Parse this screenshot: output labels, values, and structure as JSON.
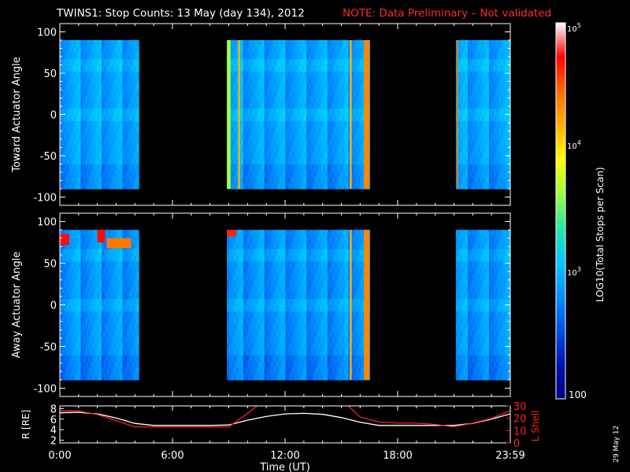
{
  "header": {
    "title": "TWINS1: Stop Counts: 13 May (day 134), 2012",
    "note": "NOTE: Data Preliminary – Not validated",
    "note_color": "#ff2a2a"
  },
  "side_date": "29 May 12",
  "colorbar": {
    "label": "LOG10(Total Stops per Scan)",
    "tick_top": "10",
    "tick_top_exp": "5",
    "tick_mid": "10",
    "tick_mid_exp": "4",
    "tick_low": "10",
    "tick_low_exp": "3",
    "tick_bottom": "100",
    "colors": [
      "#ffffff",
      "#ff0000",
      "#ff6a00",
      "#ffb000",
      "#ffff00",
      "#9cff3a",
      "#25e8a8",
      "#00c8ff",
      "#0090ff",
      "#0050e8",
      "#0012b0",
      "#000080"
    ]
  },
  "chart_data": [
    {
      "type": "heatmap",
      "panel": "top",
      "ylabel": "Toward Actuator Angle",
      "ylim": [
        -110,
        110
      ],
      "yticks": [
        "100",
        "50",
        "0",
        "-50",
        "-100"
      ],
      "ytick_values": [
        100,
        50,
        0,
        -50,
        -100
      ],
      "data_y_range": [
        -90,
        90
      ],
      "xlim_hours": [
        0,
        24
      ],
      "coverage_hours": [
        [
          0.0,
          4.2
        ],
        [
          8.9,
          16.5
        ],
        [
          21.1,
          24.0
        ]
      ],
      "baseline_level": 0.3,
      "bands": [
        {
          "t0": 8.9,
          "t1": 9.1,
          "level": 0.55
        },
        {
          "t0": 9.5,
          "t1": 9.6,
          "level": 0.72
        },
        {
          "t0": 15.45,
          "t1": 15.55,
          "level": 0.72
        },
        {
          "t0": 16.2,
          "t1": 16.5,
          "level": 0.78
        },
        {
          "t0": 21.15,
          "t1": 21.22,
          "level": 0.8
        }
      ]
    },
    {
      "type": "heatmap",
      "panel": "bottom",
      "ylabel": "Away Actuator Angle",
      "ylim": [
        -110,
        110
      ],
      "yticks": [
        "100",
        "50",
        "0",
        "-50",
        "-100"
      ],
      "ytick_values": [
        100,
        50,
        0,
        -50,
        -100
      ],
      "data_y_range": [
        -90,
        90
      ],
      "xlim_hours": [
        0,
        24
      ],
      "coverage_hours": [
        [
          0.0,
          4.2
        ],
        [
          8.9,
          16.5
        ],
        [
          21.1,
          24.0
        ]
      ],
      "baseline_level": 0.28,
      "bands": [
        {
          "t0": 8.9,
          "t1": 9.4,
          "level": 0.88,
          "y0": 82,
          "y1": 90
        },
        {
          "t0": 0.0,
          "t1": 0.5,
          "level": 0.9,
          "y0": 72,
          "y1": 85
        },
        {
          "t0": 2.0,
          "t1": 2.4,
          "level": 0.9,
          "y0": 75,
          "y1": 90
        },
        {
          "t0": 2.5,
          "t1": 3.8,
          "level": 0.8,
          "y0": 68,
          "y1": 80
        },
        {
          "t0": 15.45,
          "t1": 15.55,
          "level": 0.72
        },
        {
          "t0": 16.2,
          "t1": 16.5,
          "level": 0.78
        }
      ]
    },
    {
      "type": "line",
      "panel": "orbit",
      "ylabel_left": "R [RE]",
      "ylabel_right": "L Shell",
      "xlabel": "Time (UT)",
      "x_ticks": [
        "0:00",
        "6:00",
        "12:00",
        "18:00",
        "23:59"
      ],
      "x_tick_hours": [
        0,
        6,
        12,
        18,
        24
      ],
      "left_yticks": [
        "8",
        "6",
        "4",
        "2"
      ],
      "left_ytick_values": [
        8,
        6,
        4,
        2
      ],
      "left_ylim": [
        1.5,
        8.5
      ],
      "right_yticks": [
        "30",
        "20",
        "10",
        "0"
      ],
      "right_ytick_values": [
        30,
        20,
        10,
        0
      ],
      "right_ylim": [
        0,
        30
      ],
      "series": [
        {
          "axis": "left",
          "color": "#ffffff",
          "x": [
            0,
            1,
            2,
            3,
            4,
            5,
            6,
            7,
            8,
            9,
            10,
            11,
            12,
            13,
            14,
            15,
            16,
            17,
            18,
            19,
            20,
            21,
            22,
            23,
            24
          ],
          "y": [
            7.2,
            7.3,
            7.0,
            6.2,
            5.2,
            4.8,
            4.8,
            4.8,
            4.8,
            4.9,
            5.8,
            6.5,
            7.0,
            7.1,
            6.9,
            6.3,
            5.4,
            4.8,
            4.8,
            4.8,
            4.8,
            4.8,
            5.2,
            6.0,
            7.0
          ]
        },
        {
          "axis": "right",
          "color": "#ff2020",
          "x": [
            0,
            1,
            2,
            3,
            4,
            5,
            6,
            7,
            8,
            9,
            10,
            10.6,
            15.3,
            16,
            17,
            18,
            19,
            20,
            21,
            22,
            23,
            24
          ],
          "y": [
            26,
            26,
            23,
            18,
            13,
            13,
            13,
            13,
            13,
            13,
            24,
            31,
            31,
            21,
            17,
            16,
            16,
            15,
            13,
            16,
            20,
            26
          ]
        }
      ]
    }
  ]
}
